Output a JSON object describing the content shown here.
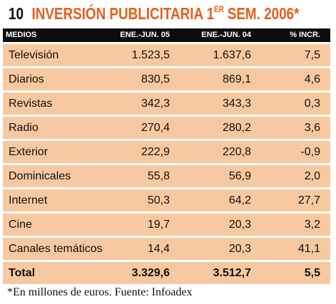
{
  "header": {
    "number": "10",
    "title": "INVERSIÓN PUBLICITARIA 1",
    "title_sup": "ER",
    "title_end": "SEM. 2006*"
  },
  "table": {
    "columns": [
      "MEDIOS",
      "ENE.-JUN. 05",
      "ENE.-JUN. 04",
      "% INCR."
    ],
    "rows": [
      [
        "Televisión",
        "1.523,5",
        "1.637,6",
        "7,5"
      ],
      [
        "Diarios",
        "830,5",
        "869,1",
        "4,6"
      ],
      [
        "Revistas",
        "342,3",
        "343,3",
        "0,3"
      ],
      [
        "Radio",
        "270,4",
        "280,2",
        "3,6"
      ],
      [
        "Exterior",
        "222,9",
        "220,8",
        "-0,9"
      ],
      [
        "Dominicales",
        "55,8",
        "56,9",
        "2,0"
      ],
      [
        "Internet",
        "50,3",
        "64,2",
        "27,7"
      ],
      [
        "Cine",
        "19,7",
        "20,3",
        "3,2"
      ],
      [
        "Canales temáticos",
        "14,4",
        "20,3",
        "41,1"
      ]
    ],
    "total": [
      "Total",
      "3.329,6",
      "3.512,7",
      "5,5"
    ]
  },
  "footnote": "*En millones de euros. Fuente: Infoadex"
}
